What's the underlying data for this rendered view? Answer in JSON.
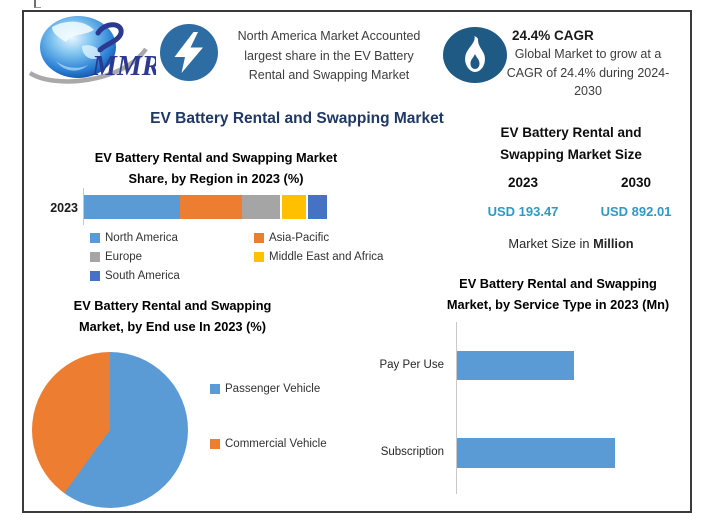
{
  "window": {
    "background": "#ffffff",
    "frame_border": "#3a3a3a"
  },
  "header": {
    "logo": {
      "brand": "MMR"
    },
    "banner": {
      "icon": "lightning-bolt",
      "icon_bg": "#2e6da4",
      "lines": [
        "North America Market Accounted",
        "largest share in the EV Battery",
        "Rental and Swapping Market"
      ]
    },
    "cagr": {
      "icon": "flame",
      "icon_bg": "#1e5a84",
      "heading": "24.4% CAGR",
      "lines": [
        "Global Market to grow at a",
        "CAGR of 24.4% during 2024-",
        "2030"
      ]
    }
  },
  "main_title": "EV Battery Rental and Swapping Market",
  "market_size_panel": {
    "title_lines": [
      "EV Battery Rental and",
      "Swapping Market Size"
    ],
    "years": [
      "2023",
      "2030"
    ],
    "values": [
      "USD 193.47",
      "USD 892.01"
    ],
    "unit_prefix": "Market Size in ",
    "unit_bold": "Million",
    "value_color": "#2e9ac4"
  },
  "chart_data": [
    {
      "type": "bar",
      "orientation": "horizontal-stacked",
      "title": "EV Battery Rental and Swapping Market Share, by Region in 2023 (%)",
      "title_lines": [
        "EV Battery Rental and Swapping Market",
        "Share, by Region in 2023 (%)"
      ],
      "categories": [
        "2023"
      ],
      "series": [
        {
          "name": "North America",
          "color": "#5b9bd5",
          "values": [
            40
          ]
        },
        {
          "name": "Asia-Pacific",
          "color": "#ed7d31",
          "values": [
            26
          ]
        },
        {
          "name": "Europe",
          "color": "#a5a5a5",
          "values": [
            16
          ]
        },
        {
          "name": "Middle East and Africa",
          "color": "#ffc000",
          "values": [
            10
          ]
        },
        {
          "name": "South America",
          "color": "#4472c4",
          "values": [
            8
          ]
        }
      ],
      "legend_position": "bottom",
      "note": "No data labels shown; segment shares estimated from bar lengths."
    },
    {
      "type": "pie",
      "title": "EV Battery Rental and Swapping Market, by End use In 2023 (%)",
      "title_lines": [
        "EV Battery Rental and Swapping",
        "Market, by End use In 2023 (%)"
      ],
      "labels": [
        "Passenger Vehicle",
        "Commercial Vehicle"
      ],
      "values": [
        60,
        40
      ],
      "colors": [
        "#5b9bd5",
        "#ed7d31"
      ],
      "start_angle_deg": 0,
      "legend_position": "right",
      "note": "No data labels shown; slice shares estimated from angles."
    },
    {
      "type": "bar",
      "orientation": "horizontal",
      "title": "EV Battery Rental and Swapping Market, by Service Type in 2023 (Mn)",
      "title_lines": [
        "EV Battery Rental and Swapping",
        "Market, by Service Type in 2023 (Mn)"
      ],
      "categories": [
        "Pay Per Use",
        "Subscription"
      ],
      "values": [
        82,
        111
      ],
      "bar_color": "#5b9bd5",
      "note": "Axis unlabeled; values estimated from relative bar lengths (USD Mn)."
    }
  ]
}
